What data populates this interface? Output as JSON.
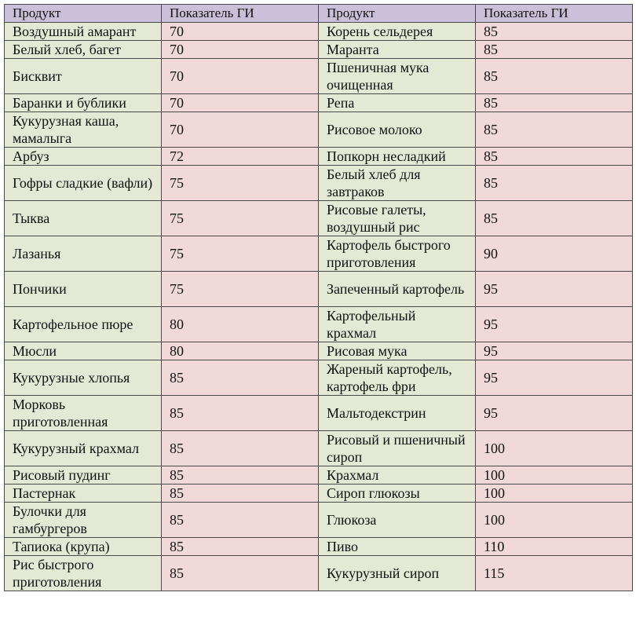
{
  "header": {
    "col1": "Продукт",
    "col2": "Показатель ГИ",
    "col3": "Продукт",
    "col4": "Показатель ГИ"
  },
  "rows": [
    {
      "left_product": "Воздушный  амарант",
      "left_gi": "70",
      "right_product": "Корень сельдерея",
      "right_gi": "85"
    },
    {
      "left_product": "Белый хлеб, багет",
      "left_gi": "70",
      "right_product": "Маранта",
      "right_gi": "85"
    },
    {
      "left_product": "Бисквит",
      "left_gi": "70",
      "right_product": "Пшеничная мука очищенная",
      "right_gi": "85"
    },
    {
      "left_product": "Баранки и бублики",
      "left_gi": "70",
      "right_product": "Репа",
      "right_gi": "85"
    },
    {
      "left_product": "Кукурузная  каша, мамалыга",
      "left_gi": "70",
      "right_product": "Рисовое молоко",
      "right_gi": "85"
    },
    {
      "left_product": "Арбуз",
      "left_gi": "72",
      "right_product": "Попкорн несладкий",
      "right_gi": "85"
    },
    {
      "left_product": "Гофры сладкие (вафли)",
      "left_gi": "75",
      "right_product": "Белый хлеб для завтраков",
      "right_gi": "85"
    },
    {
      "left_product": "Тыква",
      "left_gi": "75",
      "right_product": "Рисовые галеты, воздушный рис",
      "right_gi": "85"
    },
    {
      "left_product": "Лазанья",
      "left_gi": "75",
      "right_product": "Картофель  быстрого приготовления",
      "right_gi": "90"
    },
    {
      "left_product": "Пончики",
      "left_gi": "75",
      "right_product": "Запеченный картофель",
      "right_gi": "95"
    },
    {
      "left_product": "Картофельное пюре",
      "left_gi": "80",
      "right_product": "Картофельный крахмал",
      "right_gi": "95"
    },
    {
      "left_product": "Мюсли",
      "left_gi": "80",
      "right_product": "Рисовая мука",
      "right_gi": "95"
    },
    {
      "left_product": "Кукурузные  хлопья",
      "left_gi": "85",
      "right_product": "Жареный картофель, картофель  фри",
      "right_gi": "95"
    },
    {
      "left_product": "Морковь приготовленная",
      "left_gi": "85",
      "right_product": "Мальтодекстрин",
      "right_gi": "95"
    },
    {
      "left_product": "Кукурузный  крахмал",
      "left_gi": "85",
      "right_product": "Рисовый и пшеничный сироп",
      "right_gi": "100"
    },
    {
      "left_product": "Рисовый пудинг",
      "left_gi": "85",
      "right_product": "Крахмал",
      "right_gi": "100"
    },
    {
      "left_product": "Пастернак",
      "left_gi": "85",
      "right_product": "Сироп глюкозы",
      "right_gi": "100"
    },
    {
      "left_product": "Булочки для гамбургеров",
      "left_gi": "85",
      "right_product": "Глюкоза",
      "right_gi": "100"
    },
    {
      "left_product": "Тапиока (крупа)",
      "left_gi": "85",
      "right_product": "Пиво",
      "right_gi": "110"
    },
    {
      "left_product": "Рис быстрого приготовления",
      "left_gi": "85",
      "right_product": "Кукурузный  сироп",
      "right_gi": "115"
    }
  ]
}
